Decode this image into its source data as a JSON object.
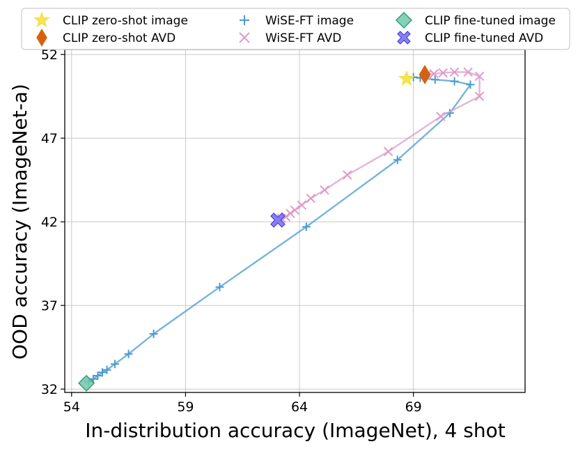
{
  "chart_data": {
    "type": "line",
    "title": "",
    "xlabel": "In-distribution accuracy (ImageNet), 4 shot",
    "ylabel": "OOD accuracy (ImageNet-a)",
    "xlim": [
      53.7,
      73.9
    ],
    "ylim": [
      31.8,
      52.3
    ],
    "xticks": [
      54,
      59,
      64,
      69
    ],
    "yticks": [
      32,
      37,
      42,
      47,
      52
    ],
    "grid": true,
    "legend_placement": "top",
    "series": [
      {
        "name": "WiSE-FT image",
        "marker": "plus",
        "color": "#4a9ad0",
        "line": true,
        "points": [
          [
            54.75,
            32.45
          ],
          [
            54.95,
            32.6
          ],
          [
            55.15,
            32.8
          ],
          [
            55.35,
            33.0
          ],
          [
            55.55,
            33.15
          ],
          [
            55.9,
            33.5
          ],
          [
            56.5,
            34.1
          ],
          [
            57.6,
            35.3
          ],
          [
            60.5,
            38.1
          ],
          [
            64.3,
            41.7
          ],
          [
            68.3,
            45.7
          ],
          [
            70.6,
            48.5
          ],
          [
            71.5,
            50.2
          ],
          [
            70.8,
            50.4
          ],
          [
            69.95,
            50.5
          ],
          [
            69.3,
            50.6
          ],
          [
            69.0,
            50.65
          ]
        ]
      },
      {
        "name": "WiSE-FT AVD",
        "marker": "x",
        "color": "#de9bc9",
        "line": true,
        "points": [
          [
            63.2,
            42.2
          ],
          [
            63.4,
            42.3
          ],
          [
            63.6,
            42.5
          ],
          [
            63.8,
            42.7
          ],
          [
            64.1,
            43.0
          ],
          [
            64.5,
            43.4
          ],
          [
            65.1,
            43.9
          ],
          [
            66.1,
            44.8
          ],
          [
            67.9,
            46.2
          ],
          [
            70.2,
            48.3
          ],
          [
            71.9,
            49.5
          ],
          [
            71.9,
            50.7
          ],
          [
            71.4,
            50.95
          ],
          [
            70.8,
            50.95
          ],
          [
            70.3,
            50.9
          ],
          [
            69.9,
            50.85
          ],
          [
            69.6,
            50.8
          ]
        ]
      },
      {
        "name": "CLIP zero-shot image",
        "marker": "star",
        "color": "#f5e03c",
        "line": false,
        "points": [
          [
            68.7,
            50.55
          ]
        ]
      },
      {
        "name": "CLIP zero-shot AVD",
        "marker": "diamond-thin",
        "color": "#d8610f",
        "line": false,
        "points": [
          [
            69.5,
            50.8
          ]
        ]
      },
      {
        "name": "CLIP fine-tuned image",
        "marker": "diamond",
        "color": "#6fc9a8",
        "line": false,
        "points": [
          [
            54.65,
            32.35
          ]
        ]
      },
      {
        "name": "CLIP fine-tuned AVD",
        "marker": "x-filled",
        "color": "#7a73f2",
        "line": false,
        "points": [
          [
            63.05,
            42.1
          ]
        ]
      }
    ],
    "legend": [
      "CLIP zero-shot image",
      "WiSE-FT image",
      "CLIP fine-tuned image",
      "CLIP zero-shot AVD",
      "WiSE-FT AVD",
      "CLIP fine-tuned AVD"
    ]
  }
}
